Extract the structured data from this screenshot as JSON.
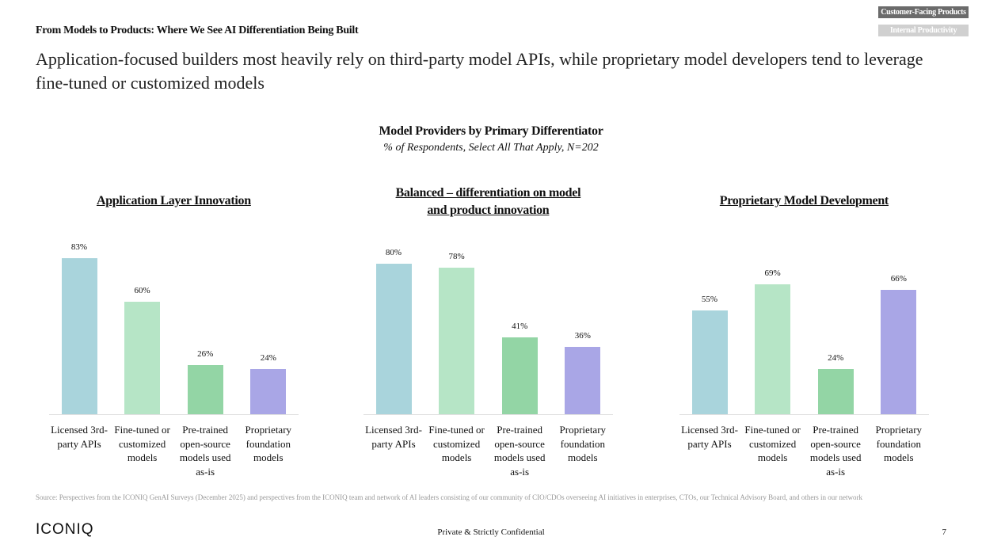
{
  "header": {
    "section": "From Models to Products: Where We See AI Differentiation Being Built",
    "headline": "Application-focused builders most heavily rely on third-party model APIs, while proprietary model developers tend to leverage fine-tuned or customized models",
    "tabs": [
      "Customer-Facing Products",
      "Internal Productivity"
    ]
  },
  "figure": {
    "title": "Model Providers by Primary Differentiator",
    "subtitle": "% of Respondents, Select All That Apply, N=202"
  },
  "chart_data": [
    {
      "type": "bar",
      "title": "Application Layer Innovation",
      "categories": [
        "Licensed 3rd-party APIs",
        "Fine-tuned or customized models",
        "Pre-trained open-source models used as-is",
        "Proprietary foundation models"
      ],
      "values": [
        83,
        60,
        26,
        24
      ],
      "value_labels": [
        "83%",
        "60%",
        "26%",
        "24%"
      ],
      "colors": [
        "#a9d4dc",
        "#b6e5c6",
        "#93d5a5",
        "#a9a6e6"
      ]
    },
    {
      "type": "bar",
      "title": "Balanced – differentiation on model and product innovation",
      "categories": [
        "Licensed 3rd-party APIs",
        "Fine-tuned or customized models",
        "Pre-trained open-source models used as-is",
        "Proprietary foundation models"
      ],
      "values": [
        80,
        78,
        41,
        36
      ],
      "value_labels": [
        "80%",
        "78%",
        "41%",
        "36%"
      ],
      "colors": [
        "#a9d4dc",
        "#b6e5c6",
        "#93d5a5",
        "#a9a6e6"
      ]
    },
    {
      "type": "bar",
      "title": "Proprietary Model Development",
      "categories": [
        "Licensed 3rd-party APIs",
        "Fine-tuned or customized models",
        "Pre-trained open-source models used as-is",
        "Proprietary foundation models"
      ],
      "values": [
        55,
        69,
        24,
        66
      ],
      "value_labels": [
        "55%",
        "69%",
        "24%",
        "66%"
      ],
      "colors": [
        "#a9d4dc",
        "#b6e5c6",
        "#93d5a5",
        "#a9a6e6"
      ]
    }
  ],
  "source": "Source: Perspectives from the ICONIQ GenAI Surveys (December 2025) and perspectives from the ICONIQ team and network of AI leaders consisting of our community of CIO/CDOs overseeing AI initiatives in enterprises, CTOs, our Technical Advisory Board, and others in our network",
  "footer": {
    "logo": "ICONIQ",
    "confidential": "Private & Strictly Confidential",
    "page": 7
  }
}
